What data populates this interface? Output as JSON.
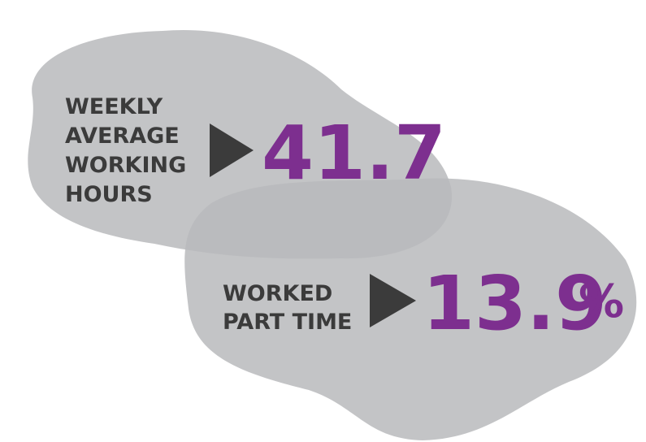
{
  "stats": [
    {
      "label_lines": [
        "WEEKLY",
        "AVERAGE",
        "WORKING",
        "HOURS"
      ],
      "value": "41.7"
    },
    {
      "label_lines": [
        "WORKED",
        "PART TIME"
      ],
      "value": "13.9",
      "unit": "%"
    }
  ]
}
